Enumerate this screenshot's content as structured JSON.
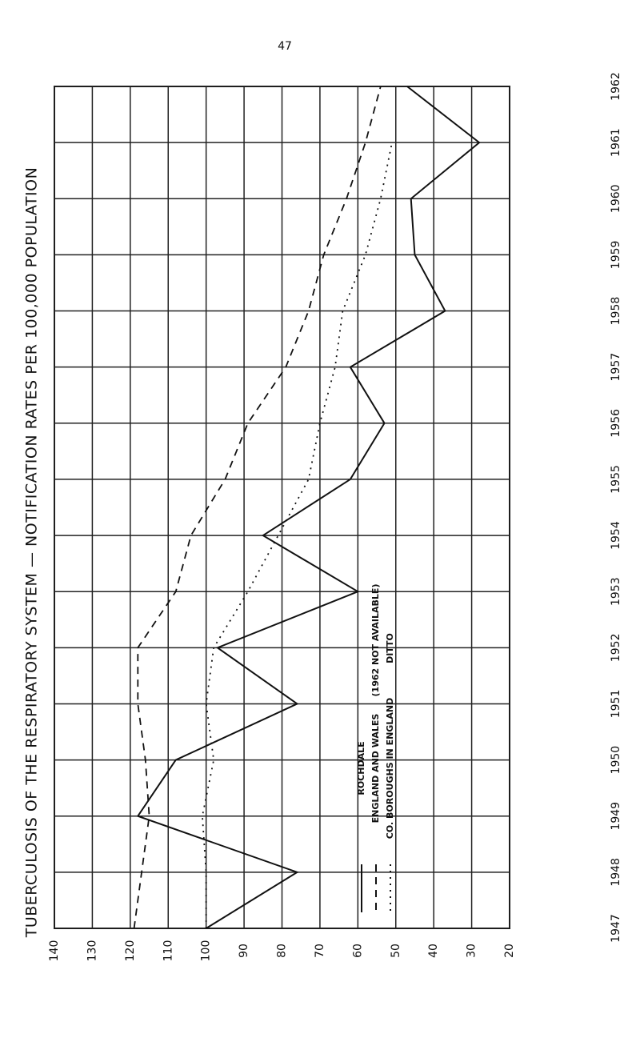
{
  "page_number": "47",
  "chart_data": {
    "type": "line",
    "title": "TUBERCULOSIS OF THE RESPIRATORY SYSTEM — NOTIFICATION RATES PER 100,000 POPULATION",
    "x": [
      1947,
      1948,
      1949,
      1950,
      1951,
      1952,
      1953,
      1954,
      1955,
      1956,
      1957,
      1958,
      1959,
      1960,
      1961,
      1962
    ],
    "xlim": [
      1947,
      1962
    ],
    "xticks": [
      1947,
      1948,
      1949,
      1950,
      1951,
      1952,
      1953,
      1954,
      1955,
      1956,
      1957,
      1958,
      1959,
      1960,
      1961,
      1962
    ],
    "ylim": [
      20,
      140
    ],
    "yticks": [
      20,
      30,
      40,
      50,
      60,
      70,
      80,
      90,
      100,
      110,
      120,
      130,
      140
    ],
    "grid": true,
    "series": [
      {
        "name": "ROCHDALE",
        "color": "#111111",
        "dash": "solid",
        "values": [
          100,
          76,
          118,
          108,
          76,
          97,
          60,
          85,
          62,
          53,
          62,
          37,
          45,
          46,
          28,
          47
        ]
      },
      {
        "name": "ENGLAND AND WALES",
        "color": "#111111",
        "dash": "dashed",
        "values": [
          119,
          117,
          115,
          116,
          118,
          118,
          108,
          104,
          95,
          89,
          79,
          73,
          69,
          63,
          58,
          54
        ]
      },
      {
        "name": "CO. BOROUGHS IN ENGLAND",
        "color": "#111111",
        "dash": "dotted",
        "values": [
          100,
          100,
          101,
          98,
          100,
          98,
          89,
          81,
          73,
          70,
          66,
          64,
          58,
          54,
          51,
          null
        ]
      }
    ],
    "annotations": [
      "(1962 NOT AVAILABLE)",
      "DITTO"
    ]
  }
}
